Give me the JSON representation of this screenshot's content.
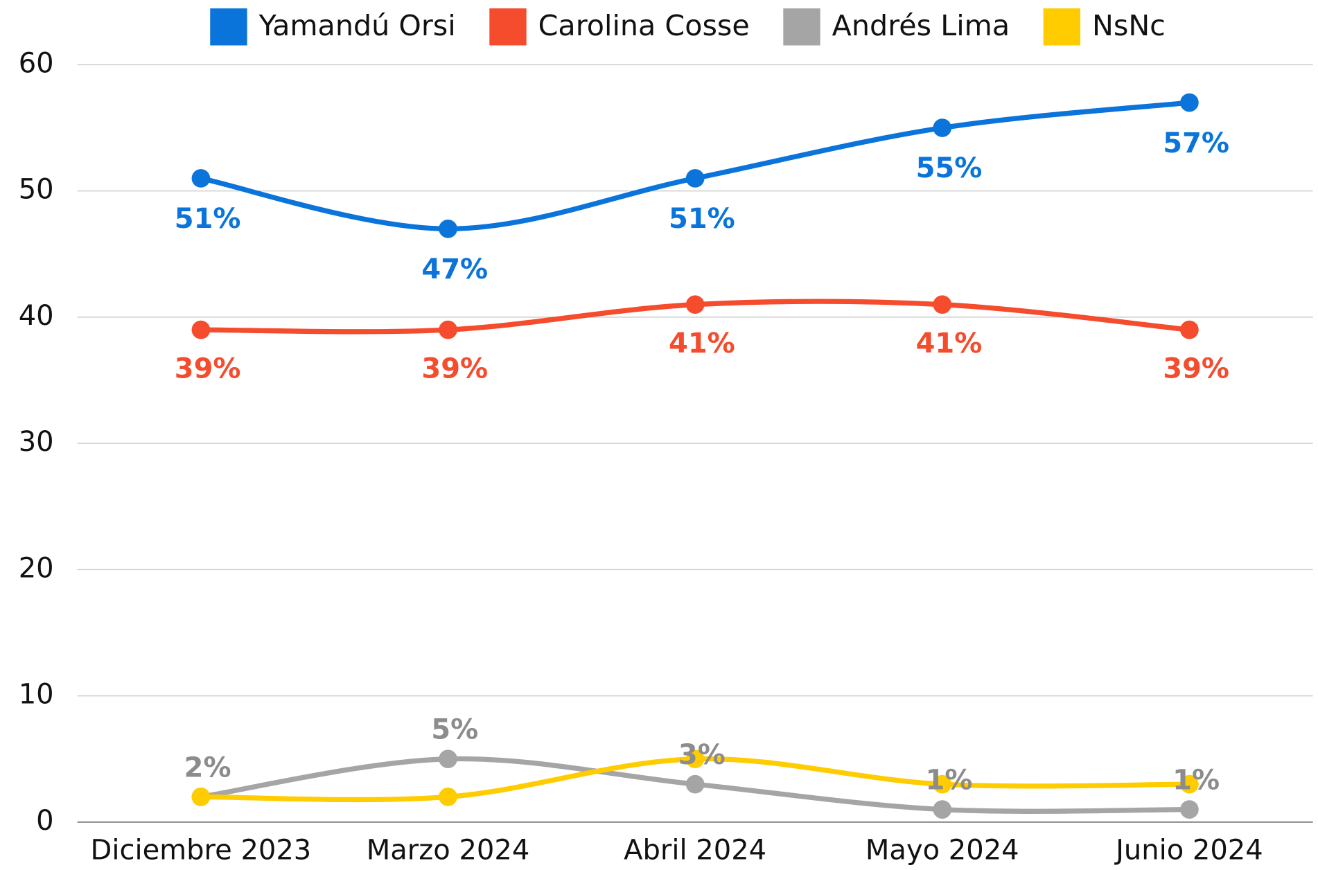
{
  "chart_data": {
    "type": "line",
    "categories": [
      "Diciembre 2023",
      "Marzo 2024",
      "Abril 2024",
      "Mayo 2024",
      "Junio 2024"
    ],
    "series": [
      {
        "name": "Yamandú Orsi",
        "color": "#0a74da",
        "values": [
          51,
          47,
          51,
          55,
          57
        ],
        "value_labels": [
          "51%",
          "47%",
          "51%",
          "55%",
          "57%"
        ]
      },
      {
        "name": "Carolina Cosse",
        "color": "#f44c2c",
        "values": [
          39,
          39,
          41,
          41,
          39
        ],
        "value_labels": [
          "39%",
          "39%",
          "41%",
          "41%",
          "39%"
        ]
      },
      {
        "name": "Andrés Lima",
        "color": "#a5a5a5",
        "values": [
          2,
          5,
          3,
          1,
          1
        ],
        "value_labels": [
          "2%",
          "5%",
          "3%",
          "1%",
          "1%"
        ]
      },
      {
        "name": "NsNc",
        "color": "#ffcc00",
        "values": [
          2,
          2,
          5,
          3,
          3
        ]
      }
    ],
    "ylim": [
      0,
      60
    ],
    "yticks": [
      0,
      10,
      20,
      30,
      40,
      50,
      60
    ],
    "grid": true,
    "legend": "top"
  }
}
